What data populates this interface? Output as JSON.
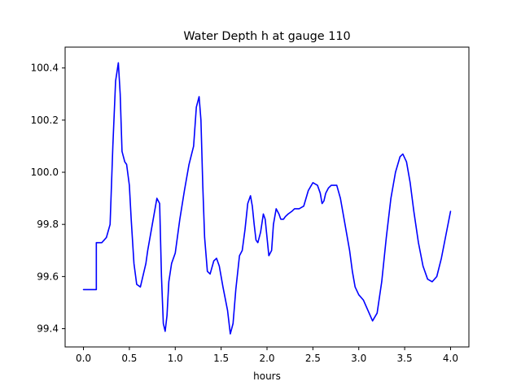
{
  "chart_data": {
    "type": "line",
    "title": "Water Depth h at gauge 110",
    "xlabel": "hours",
    "ylabel": "",
    "xlim": [
      -0.2,
      4.2
    ],
    "ylim": [
      99.33,
      100.48
    ],
    "xticks": [
      {
        "value": 0.0,
        "label": "0.0"
      },
      {
        "value": 0.5,
        "label": "0.5"
      },
      {
        "value": 1.0,
        "label": "1.0"
      },
      {
        "value": 1.5,
        "label": "1.5"
      },
      {
        "value": 2.0,
        "label": "2.0"
      },
      {
        "value": 2.5,
        "label": "2.5"
      },
      {
        "value": 3.0,
        "label": "3.0"
      },
      {
        "value": 3.5,
        "label": "3.5"
      },
      {
        "value": 4.0,
        "label": "4.0"
      }
    ],
    "yticks": [
      {
        "value": 99.4,
        "label": "99.4"
      },
      {
        "value": 99.6,
        "label": "99.6"
      },
      {
        "value": 99.8,
        "label": "99.8"
      },
      {
        "value": 100.0,
        "label": "100.0"
      },
      {
        "value": 100.2,
        "label": "100.2"
      },
      {
        "value": 100.4,
        "label": "100.4"
      }
    ],
    "grid": false,
    "legend": "none",
    "series": [
      {
        "color": "#0000ff",
        "x": [
          0.0,
          0.14,
          0.14,
          0.2,
          0.25,
          0.29,
          0.32,
          0.35,
          0.38,
          0.4,
          0.42,
          0.45,
          0.47,
          0.5,
          0.52,
          0.55,
          0.58,
          0.62,
          0.66,
          0.68,
          0.7,
          0.75,
          0.8,
          0.83,
          0.85,
          0.87,
          0.89,
          0.91,
          0.93,
          0.96,
          1.0,
          1.05,
          1.1,
          1.15,
          1.2,
          1.23,
          1.26,
          1.28,
          1.3,
          1.32,
          1.35,
          1.38,
          1.42,
          1.45,
          1.48,
          1.52,
          1.57,
          1.6,
          1.63,
          1.66,
          1.7,
          1.73,
          1.76,
          1.79,
          1.82,
          1.84,
          1.86,
          1.88,
          1.9,
          1.93,
          1.96,
          1.98,
          2.0,
          2.02,
          2.05,
          2.07,
          2.1,
          2.13,
          2.15,
          2.18,
          2.2,
          2.23,
          2.27,
          2.3,
          2.35,
          2.4,
          2.45,
          2.5,
          2.55,
          2.58,
          2.6,
          2.62,
          2.64,
          2.67,
          2.7,
          2.73,
          2.76,
          2.8,
          2.85,
          2.9,
          2.93,
          2.96,
          3.0,
          3.05,
          3.1,
          3.15,
          3.2,
          3.25,
          3.3,
          3.35,
          3.4,
          3.45,
          3.48,
          3.52,
          3.56,
          3.6,
          3.65,
          3.7,
          3.75,
          3.8,
          3.85,
          3.9,
          3.95,
          4.0
        ],
        "y": [
          99.55,
          99.55,
          99.73,
          99.73,
          99.75,
          99.8,
          100.1,
          100.35,
          100.42,
          100.3,
          100.08,
          100.04,
          100.03,
          99.95,
          99.82,
          99.65,
          99.57,
          99.56,
          99.62,
          99.65,
          99.7,
          99.8,
          99.9,
          99.88,
          99.6,
          99.42,
          99.39,
          99.45,
          99.58,
          99.65,
          99.69,
          99.82,
          99.93,
          100.03,
          100.1,
          100.25,
          100.29,
          100.2,
          99.95,
          99.75,
          99.62,
          99.61,
          99.66,
          99.67,
          99.64,
          99.56,
          99.47,
          99.38,
          99.42,
          99.55,
          99.68,
          99.7,
          99.78,
          99.88,
          99.91,
          99.87,
          99.8,
          99.74,
          99.73,
          99.77,
          99.84,
          99.82,
          99.75,
          99.68,
          99.7,
          99.8,
          99.86,
          99.84,
          99.82,
          99.82,
          99.83,
          99.84,
          99.85,
          99.86,
          99.86,
          99.87,
          99.93,
          99.96,
          99.95,
          99.92,
          99.88,
          99.89,
          99.92,
          99.94,
          99.95,
          99.95,
          99.95,
          99.9,
          99.8,
          99.7,
          99.62,
          99.56,
          99.53,
          99.51,
          99.47,
          99.43,
          99.46,
          99.58,
          99.75,
          99.9,
          100.0,
          100.06,
          100.07,
          100.04,
          99.96,
          99.85,
          99.73,
          99.64,
          99.59,
          99.58,
          99.6,
          99.67,
          99.76,
          99.85
        ]
      }
    ]
  }
}
